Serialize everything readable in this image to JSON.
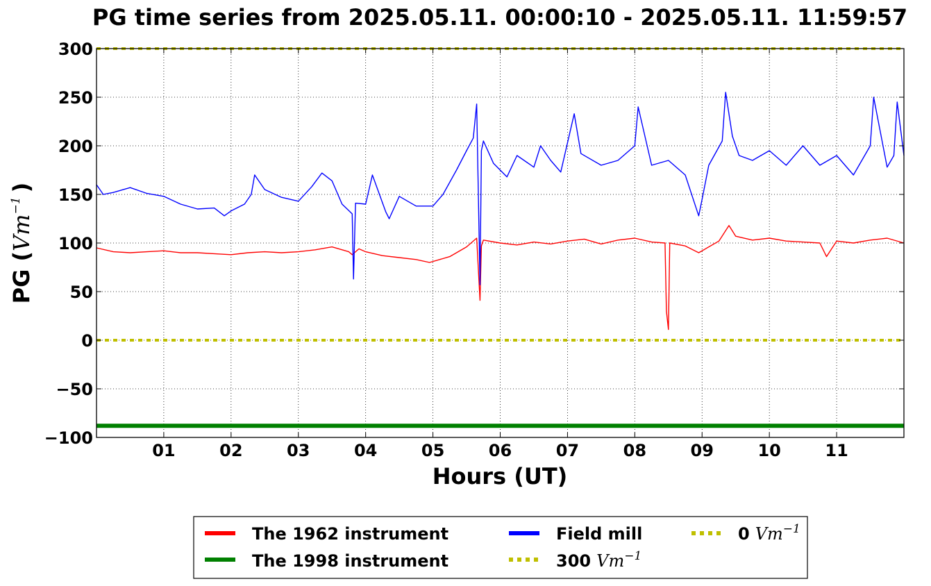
{
  "chart_data": {
    "type": "line",
    "title": "PG time series from 2025.05.11. 00:00:10 - 2025.05.11. 11:59:57",
    "xlabel": "Hours (UT)",
    "ylabel": {
      "prefix": "PG (",
      "unit": "Vm",
      "exponent": "−1",
      "suffix": ")"
    },
    "xlim": [
      0,
      12
    ],
    "ylim": [
      -100,
      300
    ],
    "grid": true,
    "x_ticks": [
      {
        "value": 1,
        "label": "01"
      },
      {
        "value": 2,
        "label": "02"
      },
      {
        "value": 3,
        "label": "03"
      },
      {
        "value": 4,
        "label": "04"
      },
      {
        "value": 5,
        "label": "05"
      },
      {
        "value": 6,
        "label": "06"
      },
      {
        "value": 7,
        "label": "07"
      },
      {
        "value": 8,
        "label": "08"
      },
      {
        "value": 9,
        "label": "09"
      },
      {
        "value": 10,
        "label": "10"
      },
      {
        "value": 11,
        "label": "11"
      }
    ],
    "y_ticks": [
      {
        "value": 300,
        "label": "300"
      },
      {
        "value": 250,
        "label": "250"
      },
      {
        "value": 200,
        "label": "200"
      },
      {
        "value": 150,
        "label": "150"
      },
      {
        "value": 100,
        "label": "100"
      },
      {
        "value": 50,
        "label": "50"
      },
      {
        "value": 0,
        "label": "0"
      },
      {
        "value": -50,
        "label": "−50"
      },
      {
        "value": -100,
        "label": "−100"
      }
    ],
    "legend_position": "bottom-center",
    "series": [
      {
        "name": "The 1962 instrument",
        "color": "#ff0000",
        "style": "solid",
        "x": [
          0.0,
          0.25,
          0.5,
          0.75,
          1.0,
          1.25,
          1.5,
          1.75,
          2.0,
          2.25,
          2.5,
          2.75,
          3.0,
          3.25,
          3.5,
          3.75,
          3.8,
          3.9,
          4.0,
          4.25,
          4.5,
          4.75,
          4.95,
          5.25,
          5.5,
          5.65,
          5.7,
          5.72,
          5.75,
          6.0,
          6.25,
          6.5,
          6.75,
          7.0,
          7.25,
          7.5,
          7.75,
          8.0,
          8.25,
          8.45,
          8.47,
          8.5,
          8.52,
          8.75,
          8.95,
          9.25,
          9.4,
          9.5,
          9.75,
          10.0,
          10.25,
          10.5,
          10.75,
          10.85,
          11.0,
          11.25,
          11.5,
          11.75,
          12.0
        ],
        "y": [
          95,
          91,
          90,
          91,
          92,
          90,
          90,
          89,
          88,
          90,
          91,
          90,
          91,
          93,
          96,
          91,
          88,
          94,
          91,
          87,
          85,
          83,
          80,
          86,
          96,
          105,
          41,
          97,
          103,
          100,
          98,
          101,
          99,
          102,
          104,
          99,
          103,
          105,
          101,
          100,
          30,
          11,
          100,
          97,
          90,
          102,
          118,
          107,
          103,
          105,
          102,
          101,
          100,
          86,
          102,
          100,
          103,
          105,
          100
        ]
      },
      {
        "name": "The 1998 instrument",
        "color": "#008000",
        "style": "solid",
        "x": [
          0,
          12
        ],
        "y": [
          -88,
          -88
        ]
      },
      {
        "name": "Field mill",
        "color": "#0000ff",
        "style": "solid",
        "x": [
          0.0,
          0.1,
          0.25,
          0.5,
          0.75,
          1.0,
          1.25,
          1.5,
          1.75,
          1.9,
          2.0,
          2.2,
          2.3,
          2.35,
          2.5,
          2.75,
          3.0,
          3.2,
          3.35,
          3.5,
          3.65,
          3.8,
          3.82,
          3.85,
          4.0,
          4.1,
          4.3,
          4.35,
          4.5,
          4.75,
          5.0,
          5.15,
          5.35,
          5.5,
          5.6,
          5.65,
          5.7,
          5.72,
          5.75,
          5.9,
          6.1,
          6.25,
          6.5,
          6.6,
          6.75,
          6.9,
          7.1,
          7.2,
          7.3,
          7.5,
          7.75,
          8.0,
          8.05,
          8.25,
          8.5,
          8.75,
          8.95,
          9.0,
          9.1,
          9.3,
          9.35,
          9.45,
          9.55,
          9.75,
          10.0,
          10.25,
          10.5,
          10.75,
          11.0,
          11.25,
          11.5,
          11.55,
          11.75,
          11.85,
          11.9,
          12.0
        ],
        "y": [
          160,
          150,
          152,
          157,
          151,
          148,
          140,
          135,
          136,
          128,
          133,
          140,
          150,
          170,
          155,
          147,
          143,
          158,
          172,
          164,
          140,
          130,
          63,
          141,
          140,
          170,
          132,
          125,
          148,
          138,
          138,
          150,
          175,
          195,
          208,
          243,
          57,
          195,
          205,
          182,
          168,
          190,
          178,
          200,
          185,
          173,
          233,
          192,
          188,
          180,
          185,
          200,
          240,
          180,
          185,
          170,
          128,
          145,
          180,
          205,
          255,
          210,
          190,
          185,
          195,
          180,
          200,
          180,
          190,
          170,
          200,
          250,
          178,
          190,
          245,
          190
        ]
      },
      {
        "name": "300",
        "unit": "Vm",
        "exponent": "−1",
        "color": "#bfbf00",
        "style": "dotted",
        "x": [
          0,
          12
        ],
        "y": [
          300,
          300
        ]
      },
      {
        "name": "0",
        "unit": "Vm",
        "exponent": "−1",
        "color": "#bfbf00",
        "style": "dotted",
        "x": [
          0,
          12
        ],
        "y": [
          0,
          0
        ]
      }
    ],
    "legend_entries": [
      {
        "label": "The 1962 instrument",
        "color": "#ff0000",
        "style": "solid"
      },
      {
        "label": "The 1998 instrument",
        "color": "#008000",
        "style": "solid"
      },
      {
        "label": "Field mill",
        "color": "#0000ff",
        "style": "solid"
      },
      {
        "label": "300",
        "unit": "Vm",
        "exponent": "−1",
        "color": "#bfbf00",
        "style": "dotted"
      },
      {
        "label": "0",
        "unit": "Vm",
        "exponent": "−1",
        "color": "#bfbf00",
        "style": "dotted"
      }
    ]
  }
}
